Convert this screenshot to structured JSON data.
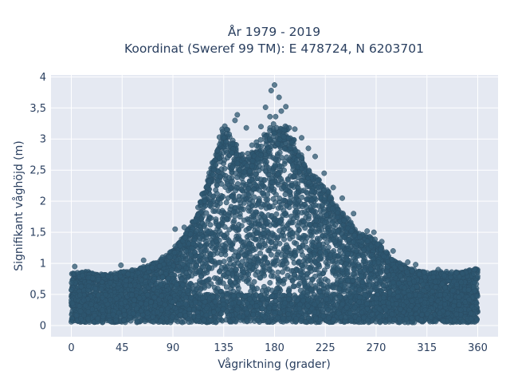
{
  "chart_data": {
    "type": "scatter",
    "title_lines": [
      "År 1979 - 2019",
      "Koordinat (Sweref 99 TM): E 478724, N 6203701"
    ],
    "xlabel": "Vågriktning (grader)",
    "ylabel": "Signifikant våghöjd (m)",
    "xlim": [
      -18,
      378
    ],
    "ylim": [
      -0.18,
      4.03
    ],
    "x_ticks": [
      0,
      45,
      90,
      135,
      180,
      225,
      270,
      315,
      360
    ],
    "x_tick_labels": [
      "0",
      "45",
      "90",
      "135",
      "180",
      "225",
      "270",
      "315",
      "360"
    ],
    "y_ticks": [
      0,
      0.5,
      1,
      1.5,
      2,
      2.5,
      3,
      3.5,
      4
    ],
    "y_tick_labels": [
      "0",
      "0,5",
      "1",
      "1,5",
      "2",
      "2,5",
      "3",
      "3,5",
      "4"
    ],
    "grid": true,
    "legend": "none",
    "marker_color": "#2e5770",
    "plot_background": "#e5e9f2",
    "envelope": {
      "x": [
        0,
        15,
        30,
        45,
        60,
        75,
        90,
        100,
        110,
        120,
        130,
        135,
        140,
        150,
        160,
        170,
        180,
        190,
        200,
        210,
        225,
        240,
        255,
        270,
        285,
        300,
        315,
        330,
        345,
        360
      ],
      "ymax": [
        0.85,
        0.85,
        0.8,
        0.85,
        0.9,
        1.0,
        1.2,
        1.45,
        1.75,
        2.3,
        2.9,
        3.2,
        3.1,
        2.7,
        2.75,
        3.0,
        3.2,
        3.15,
        2.85,
        2.5,
        2.2,
        1.8,
        1.5,
        1.35,
        1.05,
        0.9,
        0.85,
        0.85,
        0.85,
        0.9
      ],
      "ymin": [
        0.05,
        0.05,
        0.05,
        0.05,
        0.05,
        0.05,
        0.05,
        0.05,
        0.05,
        0.05,
        0.05,
        0.05,
        0.05,
        0.05,
        0.05,
        0.05,
        0.05,
        0.05,
        0.05,
        0.05,
        0.05,
        0.05,
        0.05,
        0.05,
        0.05,
        0.05,
        0.05,
        0.05,
        0.05,
        0.05
      ]
    },
    "outliers": [
      {
        "x": 180,
        "y": 3.87
      },
      {
        "x": 177,
        "y": 3.78
      },
      {
        "x": 184,
        "y": 3.67
      },
      {
        "x": 172,
        "y": 3.51
      },
      {
        "x": 176,
        "y": 3.36
      },
      {
        "x": 181,
        "y": 3.36
      },
      {
        "x": 186,
        "y": 3.45
      },
      {
        "x": 190,
        "y": 3.52
      },
      {
        "x": 147,
        "y": 3.39
      },
      {
        "x": 145,
        "y": 3.3
      },
      {
        "x": 155,
        "y": 3.18
      },
      {
        "x": 168,
        "y": 3.2
      },
      {
        "x": 193,
        "y": 3.18
      },
      {
        "x": 198,
        "y": 3.16
      },
      {
        "x": 204,
        "y": 3.02
      },
      {
        "x": 210,
        "y": 2.85
      },
      {
        "x": 216,
        "y": 2.72
      },
      {
        "x": 224,
        "y": 2.45
      },
      {
        "x": 232,
        "y": 2.22
      },
      {
        "x": 240,
        "y": 2.05
      },
      {
        "x": 250,
        "y": 1.8
      },
      {
        "x": 262,
        "y": 1.52
      },
      {
        "x": 268,
        "y": 1.5
      },
      {
        "x": 275,
        "y": 1.35
      },
      {
        "x": 285,
        "y": 1.2
      },
      {
        "x": 298,
        "y": 1.02
      },
      {
        "x": 305,
        "y": 0.98
      },
      {
        "x": 325,
        "y": 0.9
      },
      {
        "x": 357,
        "y": 0.9
      },
      {
        "x": 92,
        "y": 1.55
      },
      {
        "x": 100,
        "y": 1.58
      },
      {
        "x": 112,
        "y": 1.78
      },
      {
        "x": 118,
        "y": 2.0
      },
      {
        "x": 122,
        "y": 2.32
      },
      {
        "x": 64,
        "y": 1.05
      },
      {
        "x": 44,
        "y": 0.97
      },
      {
        "x": 3,
        "y": 0.95
      },
      {
        "x": 160,
        "y": 2.9
      },
      {
        "x": 164,
        "y": 2.95
      }
    ]
  }
}
